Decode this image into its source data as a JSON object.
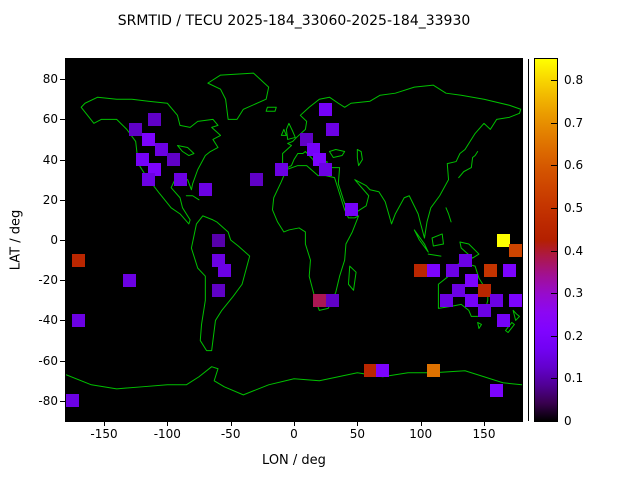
{
  "title": "SRMTID / TECU 2025-184_33060-2025-184_33930",
  "chart_data": {
    "type": "heatmap",
    "title": "SRMTID / TECU 2025-184_33060-2025-184_33930",
    "xlabel": "LON / deg",
    "ylabel": "LAT / deg",
    "xlim": [
      -180,
      180
    ],
    "ylim": [
      -90,
      90
    ],
    "xticks": [
      -150,
      -100,
      -50,
      0,
      50,
      100,
      150
    ],
    "yticks": [
      80,
      60,
      40,
      20,
      0,
      -20,
      -40,
      -60,
      -80
    ],
    "colorbar_ticks": [
      0,
      0.1,
      0.2,
      0.3,
      0.4,
      0.5,
      0.6,
      0.7,
      0.8
    ],
    "colorbar_range": [
      0,
      0.85
    ],
    "units": "TECU",
    "marker_size_px": 13,
    "palette": "black-purple-violet-red-orange-yellow (gnuplot pm3d)",
    "background_color": "#000000",
    "coastline_color": "#00C000",
    "grid": false,
    "legend_position": "right-colorbar",
    "cells": [
      {
        "lon": 25,
        "lat": 65,
        "value": 0.18
      },
      {
        "lon": 30,
        "lat": 55,
        "value": 0.15
      },
      {
        "lon": -110,
        "lat": 60,
        "value": 0.12
      },
      {
        "lon": -125,
        "lat": 55,
        "value": 0.12
      },
      {
        "lon": -115,
        "lat": 50,
        "value": 0.2
      },
      {
        "lon": -105,
        "lat": 45,
        "value": 0.15
      },
      {
        "lon": -120,
        "lat": 40,
        "value": 0.18
      },
      {
        "lon": -110,
        "lat": 35,
        "value": 0.2
      },
      {
        "lon": -95,
        "lat": 40,
        "value": 0.12
      },
      {
        "lon": -90,
        "lat": 30,
        "value": 0.15
      },
      {
        "lon": -115,
        "lat": 30,
        "value": 0.15
      },
      {
        "lon": -70,
        "lat": 25,
        "value": 0.15
      },
      {
        "lon": -30,
        "lat": 30,
        "value": 0.12
      },
      {
        "lon": -10,
        "lat": 35,
        "value": 0.15
      },
      {
        "lon": 10,
        "lat": 50,
        "value": 0.12
      },
      {
        "lon": 15,
        "lat": 45,
        "value": 0.18
      },
      {
        "lon": 20,
        "lat": 40,
        "value": 0.2
      },
      {
        "lon": 25,
        "lat": 35,
        "value": 0.15
      },
      {
        "lon": 45,
        "lat": 15,
        "value": 0.18
      },
      {
        "lon": -170,
        "lat": -10,
        "value": 0.45
      },
      {
        "lon": -130,
        "lat": -20,
        "value": 0.15
      },
      {
        "lon": -60,
        "lat": 0,
        "value": 0.1
      },
      {
        "lon": -60,
        "lat": -10,
        "value": 0.15
      },
      {
        "lon": -55,
        "lat": -15,
        "value": 0.15
      },
      {
        "lon": -60,
        "lat": -25,
        "value": 0.12
      },
      {
        "lon": 20,
        "lat": -30,
        "value": 0.38
      },
      {
        "lon": 30,
        "lat": -30,
        "value": 0.12
      },
      {
        "lon": 100,
        "lat": -15,
        "value": 0.45
      },
      {
        "lon": 110,
        "lat": -15,
        "value": 0.2
      },
      {
        "lon": 125,
        "lat": -15,
        "value": 0.15
      },
      {
        "lon": 135,
        "lat": -10,
        "value": 0.15
      },
      {
        "lon": 165,
        "lat": 0,
        "value": 0.85
      },
      {
        "lon": 175,
        "lat": -5,
        "value": 0.55
      },
      {
        "lon": 155,
        "lat": -15,
        "value": 0.5
      },
      {
        "lon": 170,
        "lat": -15,
        "value": 0.2
      },
      {
        "lon": 140,
        "lat": -20,
        "value": 0.2
      },
      {
        "lon": 130,
        "lat": -25,
        "value": 0.15
      },
      {
        "lon": 150,
        "lat": -25,
        "value": 0.45
      },
      {
        "lon": 120,
        "lat": -30,
        "value": 0.15
      },
      {
        "lon": 140,
        "lat": -30,
        "value": 0.18
      },
      {
        "lon": 160,
        "lat": -30,
        "value": 0.15
      },
      {
        "lon": 175,
        "lat": -30,
        "value": 0.2
      },
      {
        "lon": 150,
        "lat": -35,
        "value": 0.15
      },
      {
        "lon": 165,
        "lat": -40,
        "value": 0.18
      },
      {
        "lon": -170,
        "lat": -40,
        "value": 0.15
      },
      {
        "lon": 60,
        "lat": -65,
        "value": 0.45
      },
      {
        "lon": 70,
        "lat": -65,
        "value": 0.2
      },
      {
        "lon": 110,
        "lat": -65,
        "value": 0.65
      },
      {
        "lon": 160,
        "lat": -75,
        "value": 0.2
      },
      {
        "lon": -175,
        "lat": -80,
        "value": 0.15
      }
    ]
  }
}
